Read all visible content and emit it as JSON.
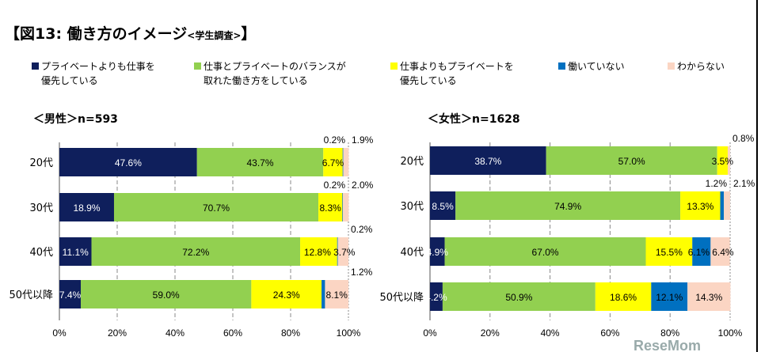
{
  "title": {
    "main": "【図13:  働き方のイメージ",
    "sub": "<学生調査>",
    "close": "】"
  },
  "legend": [
    {
      "line1": "プライベートよりも仕事を",
      "line2": "優先している",
      "color": "#0f1f5c"
    },
    {
      "line1": "仕事とプライベートのバランスが",
      "line2": "取れた働き方をしている",
      "color": "#92d050"
    },
    {
      "line1": "仕事よりもプライベートを",
      "line2": "優先している",
      "color": "#ffff00"
    },
    {
      "line1": "働いていない",
      "line2": "",
      "color": "#0070c0"
    },
    {
      "line1": "わからない",
      "line2": "",
      "color": "#fbd5c3"
    }
  ],
  "chart_data": [
    {
      "type": "bar",
      "stacked": true,
      "orientation": "horizontal",
      "title": "＜男性＞n=593",
      "categories": [
        "20代",
        "30代",
        "40代",
        "50代以降"
      ],
      "xlim": [
        0,
        100
      ],
      "xticks": [
        "0%",
        "20%",
        "40%",
        "60%",
        "80%",
        "100%"
      ],
      "grid": "vertical dashed",
      "series": [
        {
          "name": "プライベートよりも仕事を優先している",
          "values": [
            47.6,
            18.9,
            11.1,
            7.4
          ]
        },
        {
          "name": "仕事とプライベートのバランスが取れた働き方をしている",
          "values": [
            43.7,
            70.7,
            72.2,
            59.0
          ]
        },
        {
          "name": "仕事よりもプライベートを優先している",
          "values": [
            6.7,
            8.3,
            12.8,
            24.3
          ]
        },
        {
          "name": "働いていない",
          "values": [
            0.2,
            0.2,
            0.2,
            1.2
          ]
        },
        {
          "name": "わからない",
          "values": [
            1.9,
            2.0,
            3.7,
            8.1
          ]
        }
      ]
    },
    {
      "type": "bar",
      "stacked": true,
      "orientation": "horizontal",
      "title": "＜女性＞n=1628",
      "categories": [
        "20代",
        "30代",
        "40代",
        "50代以降"
      ],
      "xlim": [
        0,
        100
      ],
      "xticks": [
        "0%",
        "20%",
        "40%",
        "60%",
        "80%",
        "100%"
      ],
      "grid": "vertical dashed",
      "series": [
        {
          "name": "プライベートよりも仕事を優先している",
          "values": [
            38.7,
            8.5,
            4.9,
            4.2
          ]
        },
        {
          "name": "仕事とプライベートのバランスが取れた働き方をしている",
          "values": [
            57.0,
            74.9,
            67.0,
            50.9
          ]
        },
        {
          "name": "仕事よりもプライベートを優先している",
          "values": [
            3.5,
            13.3,
            15.5,
            18.6
          ]
        },
        {
          "name": "働いていない",
          "values": [
            0,
            1.2,
            6.1,
            12.1
          ]
        },
        {
          "name": "わからない",
          "values": [
            0.8,
            2.1,
            6.4,
            14.3
          ]
        }
      ]
    }
  ],
  "watermark": "ReseMom"
}
